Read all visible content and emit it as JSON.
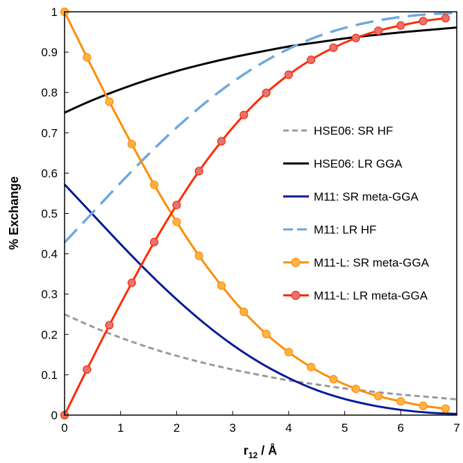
{
  "chart_data": {
    "type": "line",
    "title": "",
    "xlabel": "r",
    "xlabel_sub": "12",
    "xlabel_unit": " / Å",
    "ylabel": "% Exchange",
    "xlim": [
      0,
      7
    ],
    "ylim": [
      0,
      1
    ],
    "xticks": [
      "0",
      "1",
      "2",
      "3",
      "4",
      "5",
      "6",
      "7"
    ],
    "yticks": [
      "0",
      "0.1",
      "0.2",
      "0.3",
      "0.4",
      "0.5",
      "0.6",
      "0.7",
      "0.8",
      "0.9",
      "1"
    ],
    "grid": false,
    "legend_position": "right",
    "series": [
      {
        "name": "HSE06: SR HF",
        "color": "#999999",
        "style": "dashed",
        "marker": "none",
        "x": [
          0,
          0.5,
          1,
          1.5,
          2,
          2.5,
          3,
          3.5,
          4,
          4.5,
          5,
          5.5,
          6,
          6.5,
          7
        ],
        "y": [
          0.25,
          0.219,
          0.192,
          0.168,
          0.147,
          0.129,
          0.113,
          0.099,
          0.086,
          0.076,
          0.066,
          0.058,
          0.051,
          0.045,
          0.039
        ]
      },
      {
        "name": "HSE06: LR GGA",
        "color": "#000000",
        "style": "solid",
        "marker": "none",
        "x": [
          0,
          0.5,
          1,
          1.5,
          2,
          2.5,
          3,
          3.5,
          4,
          4.5,
          5,
          5.5,
          6,
          6.5,
          7
        ],
        "y": [
          0.75,
          0.781,
          0.808,
          0.832,
          0.853,
          0.871,
          0.887,
          0.901,
          0.914,
          0.924,
          0.934,
          0.942,
          0.949,
          0.955,
          0.961
        ]
      },
      {
        "name": "M11: SR meta-GGA",
        "color": "#001a99",
        "style": "solid",
        "marker": "none",
        "x": [
          0,
          0.5,
          1,
          1.5,
          2,
          2.5,
          3,
          3.5,
          4,
          4.5,
          5,
          5.5,
          6,
          6.5,
          7
        ],
        "y": [
          0.572,
          0.498,
          0.424,
          0.353,
          0.287,
          0.227,
          0.174,
          0.129,
          0.092,
          0.062,
          0.04,
          0.024,
          0.013,
          0.006,
          0.003
        ]
      },
      {
        "name": "M11: LR HF",
        "color": "#6fa8dc",
        "style": "dashed",
        "marker": "none",
        "x": [
          0,
          0.5,
          1,
          1.5,
          2,
          2.5,
          3,
          3.5,
          4,
          4.5,
          5,
          5.5,
          6,
          6.5,
          7
        ],
        "y": [
          0.428,
          0.502,
          0.576,
          0.647,
          0.713,
          0.773,
          0.826,
          0.871,
          0.908,
          0.938,
          0.96,
          0.976,
          0.987,
          0.994,
          0.997
        ]
      },
      {
        "name": "M11-L: SR meta-GGA",
        "color": "#ff8c00",
        "style": "solid",
        "marker": "circle",
        "marker_fill": "#ffb347",
        "x": [
          0,
          0.4,
          0.8,
          1.2,
          1.6,
          2.0,
          2.4,
          2.8,
          3.2,
          3.6,
          4.0,
          4.4,
          4.8,
          5.2,
          5.6,
          6.0,
          6.4,
          6.8
        ],
        "y": [
          1.0,
          0.887,
          0.777,
          0.672,
          0.571,
          0.479,
          0.395,
          0.321,
          0.256,
          0.201,
          0.156,
          0.119,
          0.089,
          0.065,
          0.047,
          0.034,
          0.023,
          0.016
        ]
      },
      {
        "name": "M11-L: LR meta-GGA",
        "color": "#ff2a00",
        "style": "solid",
        "marker": "circle",
        "marker_fill": "#e57373",
        "x": [
          0,
          0.4,
          0.8,
          1.2,
          1.6,
          2.0,
          2.4,
          2.8,
          3.2,
          3.6,
          4.0,
          4.4,
          4.8,
          5.2,
          5.6,
          6.0,
          6.4,
          6.8
        ],
        "y": [
          0.0,
          0.113,
          0.223,
          0.328,
          0.429,
          0.521,
          0.605,
          0.679,
          0.744,
          0.799,
          0.844,
          0.881,
          0.911,
          0.935,
          0.953,
          0.966,
          0.977,
          0.984
        ]
      }
    ]
  }
}
